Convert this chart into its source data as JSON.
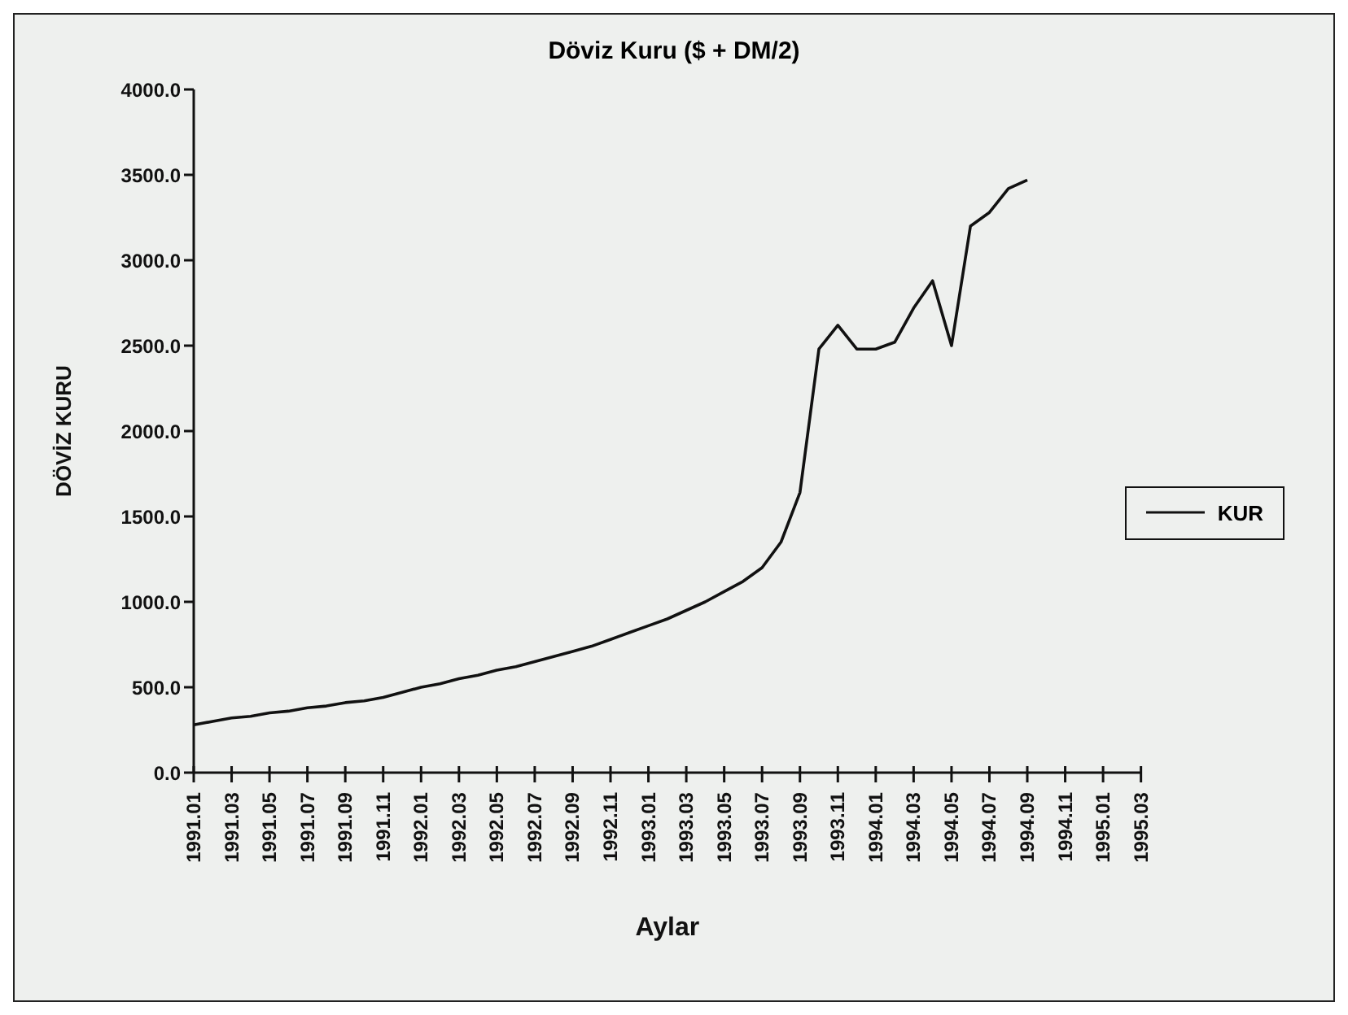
{
  "chart_data": {
    "type": "line",
    "title": "Döviz Kuru ($ + DM/2)",
    "xlabel": "Aylar",
    "ylabel": "DÖVİZ KURU",
    "categories": [
      "1991.01",
      null,
      "1991.03",
      null,
      "1991.05",
      null,
      "1991.07",
      null,
      "1991.09",
      null,
      "1991.11",
      null,
      "1992.01",
      null,
      "1992.03",
      null,
      "1992.05",
      null,
      "1992.07",
      null,
      "1992.09",
      null,
      "1992.11",
      null,
      "1993.01",
      null,
      "1993.03",
      null,
      "1993.05",
      null,
      "1993.07",
      null,
      "1993.09",
      null,
      "1993.11",
      null,
      "1994.01",
      null,
      "1994.03",
      null,
      "1994.05",
      null,
      "1994.07",
      null,
      "1994.09",
      null,
      "1994.11",
      null,
      "1995.01",
      null,
      "1995.03"
    ],
    "series": [
      {
        "name": "KUR",
        "color": "#111111",
        "values": [
          280,
          300,
          320,
          330,
          350,
          360,
          380,
          390,
          410,
          420,
          440,
          470,
          500,
          520,
          550,
          570,
          600,
          620,
          650,
          680,
          710,
          740,
          780,
          820,
          860,
          900,
          950,
          1000,
          1060,
          1120,
          1200,
          1350,
          1640,
          2480,
          2620,
          2480,
          2480,
          2520,
          2720,
          2880,
          2500,
          3200,
          3280,
          3420,
          3470,
          null,
          null,
          null,
          null,
          null,
          null
        ]
      }
    ],
    "ylim": [
      0,
      4000
    ],
    "yticks": [
      {
        "value": 0,
        "label": "0.0"
      },
      {
        "value": 500,
        "label": "500.0"
      },
      {
        "value": 1000,
        "label": "1000.0"
      },
      {
        "value": 1500,
        "label": "1500.0"
      },
      {
        "value": 2000,
        "label": "2000.0"
      },
      {
        "value": 2500,
        "label": "2500.0"
      },
      {
        "value": 3000,
        "label": "3000.0"
      },
      {
        "value": 3500,
        "label": "3500.0"
      },
      {
        "value": 4000,
        "label": "4000.0"
      }
    ],
    "grid": false,
    "legend": "right",
    "marker": "none",
    "line_style": "solid"
  }
}
